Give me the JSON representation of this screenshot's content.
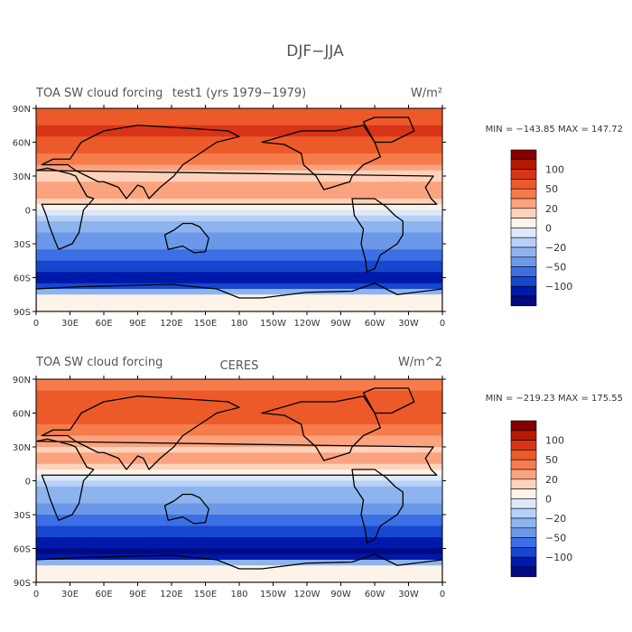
{
  "figure_title": "DJF−JJA",
  "colors": {
    "levels": [
      "#840000",
      "#b51a00",
      "#d83418",
      "#ed5a2a",
      "#f77c4b",
      "#fba37f",
      "#ffd3bb",
      "#fdf3e9",
      "#dbe9fb",
      "#b7d0f7",
      "#8eb4ef",
      "#6c98ea",
      "#3d6fe4",
      "#1747cf",
      "#0019aa",
      "#000a82"
    ],
    "land_outline": "#000000"
  },
  "chart_data": [
    {
      "type": "heatmap",
      "title": "TOA SW cloud forcing",
      "subtitle": "test1 (yrs 1979−1979)",
      "units": "W/m²",
      "stats": "MIN = −143.85  MAX = 147.72",
      "x_ticks": [
        "0",
        "30E",
        "60E",
        "90E",
        "120E",
        "150E",
        "180",
        "150W",
        "120W",
        "90W",
        "60W",
        "30W",
        "0"
      ],
      "y_ticks": [
        "90N",
        "60N",
        "30N",
        "0",
        "30S",
        "60S",
        "90S"
      ],
      "xlim": [
        0,
        360
      ],
      "ylim": [
        -90,
        90
      ],
      "colorbar_labels": [
        "100",
        "50",
        "20",
        "0",
        "−20",
        "−50",
        "−100"
      ],
      "zonal_mean_profile": [
        {
          "lat": 80,
          "value": 70
        },
        {
          "lat": 70,
          "value": 90
        },
        {
          "lat": 60,
          "value": 80
        },
        {
          "lat": 45,
          "value": 60
        },
        {
          "lat": 30,
          "value": 20
        },
        {
          "lat": 15,
          "value": 40
        },
        {
          "lat": 5,
          "value": 10
        },
        {
          "lat": -5,
          "value": -10
        },
        {
          "lat": -15,
          "value": -25
        },
        {
          "lat": -30,
          "value": -40
        },
        {
          "lat": -45,
          "value": -70
        },
        {
          "lat": -55,
          "value": -90
        },
        {
          "lat": -65,
          "value": -110
        },
        {
          "lat": -75,
          "value": 5
        },
        {
          "lat": -85,
          "value": 5
        }
      ]
    },
    {
      "type": "heatmap",
      "title": "TOA SW cloud forcing",
      "subtitle": "CERES",
      "units": "W/m^2",
      "stats": "MIN = −219.23  MAX = 175.55",
      "x_ticks": [
        "0",
        "30E",
        "60E",
        "90E",
        "120E",
        "150E",
        "180",
        "150W",
        "120W",
        "90W",
        "60W",
        "30W",
        "0"
      ],
      "y_ticks": [
        "90N",
        "60N",
        "30N",
        "0",
        "30S",
        "60S",
        "90S"
      ],
      "xlim": [
        0,
        360
      ],
      "ylim": [
        -90,
        90
      ],
      "colorbar_labels": [
        "100",
        "50",
        "20",
        "0",
        "−20",
        "−50",
        "−100"
      ],
      "zonal_mean_profile": [
        {
          "lat": 80,
          "value": 60
        },
        {
          "lat": 70,
          "value": 80
        },
        {
          "lat": 60,
          "value": 75
        },
        {
          "lat": 45,
          "value": 55
        },
        {
          "lat": 30,
          "value": 25
        },
        {
          "lat": 15,
          "value": 35
        },
        {
          "lat": 5,
          "value": 5
        },
        {
          "lat": -5,
          "value": -15
        },
        {
          "lat": -15,
          "value": -25
        },
        {
          "lat": -30,
          "value": -40
        },
        {
          "lat": -45,
          "value": -75
        },
        {
          "lat": -55,
          "value": -100
        },
        {
          "lat": -65,
          "value": -130
        },
        {
          "lat": -75,
          "value": 10
        },
        {
          "lat": -85,
          "value": 10
        }
      ]
    }
  ]
}
